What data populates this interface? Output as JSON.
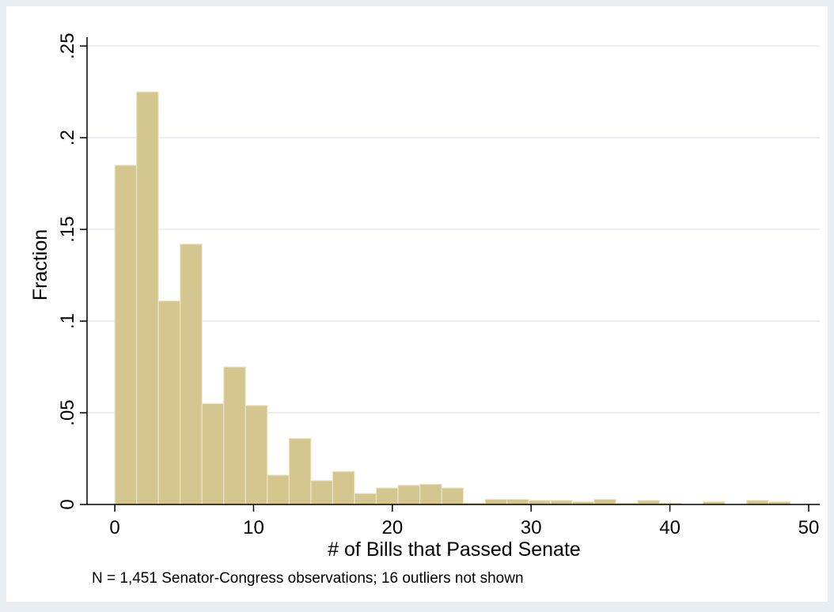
{
  "chart_data": {
    "type": "bar",
    "xlabel": "# of Bills that Passed Senate",
    "ylabel": "Fraction",
    "note": "N = 1,451 Senator-Congress observations; 16 outliers not shown",
    "xlim": [
      -2,
      50.8
    ],
    "ylim": [
      0,
      0.26
    ],
    "x_ticks": [
      0,
      10,
      20,
      30,
      40,
      50
    ],
    "x_tick_labels": [
      "0",
      "10",
      "20",
      "30",
      "40",
      "50"
    ],
    "y_ticks": [
      0,
      0.05,
      0.1,
      0.15,
      0.2,
      0.25
    ],
    "y_tick_labels": [
      "0",
      ".05",
      ".1",
      ".15",
      ".2",
      ".25"
    ],
    "grid": true,
    "bin_width": 1.57,
    "bins": [
      {
        "x0": 0.0,
        "value": 0.185
      },
      {
        "x0": 1.57,
        "value": 0.225
      },
      {
        "x0": 3.14,
        "value": 0.111
      },
      {
        "x0": 4.71,
        "value": 0.142
      },
      {
        "x0": 6.28,
        "value": 0.055
      },
      {
        "x0": 7.85,
        "value": 0.075
      },
      {
        "x0": 9.42,
        "value": 0.054
      },
      {
        "x0": 10.99,
        "value": 0.016
      },
      {
        "x0": 12.56,
        "value": 0.036
      },
      {
        "x0": 14.13,
        "value": 0.013
      },
      {
        "x0": 15.7,
        "value": 0.018
      },
      {
        "x0": 17.27,
        "value": 0.006
      },
      {
        "x0": 18.84,
        "value": 0.009
      },
      {
        "x0": 20.41,
        "value": 0.0105
      },
      {
        "x0": 21.98,
        "value": 0.011
      },
      {
        "x0": 23.55,
        "value": 0.009
      },
      {
        "x0": 25.12,
        "value": 0.0008
      },
      {
        "x0": 26.69,
        "value": 0.0028
      },
      {
        "x0": 28.26,
        "value": 0.0028
      },
      {
        "x0": 29.83,
        "value": 0.0022
      },
      {
        "x0": 31.4,
        "value": 0.0022
      },
      {
        "x0": 32.97,
        "value": 0.0015
      },
      {
        "x0": 34.54,
        "value": 0.0028
      },
      {
        "x0": 36.11,
        "value": 0.0008
      },
      {
        "x0": 37.68,
        "value": 0.0022
      },
      {
        "x0": 39.25,
        "value": 0.0008
      },
      {
        "x0": 40.82,
        "value": 0
      },
      {
        "x0": 42.39,
        "value": 0.0015
      },
      {
        "x0": 43.96,
        "value": 0
      },
      {
        "x0": 45.53,
        "value": 0.0022
      },
      {
        "x0": 47.1,
        "value": 0.0015
      }
    ],
    "colors": {
      "bar_fill": "#d3c68e",
      "bar_stroke": "#ede6c6",
      "background": "#e8eef2",
      "plot_background": "#ffffff",
      "grid": "#e8eef2",
      "axis": "#000000"
    }
  }
}
